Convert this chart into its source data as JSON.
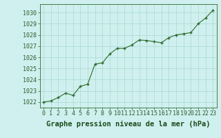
{
  "x": [
    0,
    1,
    2,
    3,
    4,
    5,
    6,
    7,
    8,
    9,
    10,
    11,
    12,
    13,
    14,
    15,
    16,
    17,
    18,
    19,
    20,
    21,
    22,
    23
  ],
  "y": [
    1022.0,
    1022.1,
    1022.4,
    1022.8,
    1022.6,
    1023.4,
    1023.6,
    1025.4,
    1025.5,
    1026.3,
    1026.8,
    1026.8,
    1027.1,
    1027.55,
    1027.5,
    1027.4,
    1027.3,
    1027.75,
    1028.0,
    1028.1,
    1028.2,
    1029.0,
    1029.5,
    1030.2
  ],
  "line_color": "#2d6a2d",
  "marker_color": "#2d6a2d",
  "bg_color": "#cff0ee",
  "grid_color": "#a8d8d4",
  "xlabel": "Graphe pression niveau de la mer (hPa)",
  "ylim": [
    1021.5,
    1030.75
  ],
  "yticks": [
    1022,
    1023,
    1024,
    1025,
    1026,
    1027,
    1028,
    1029,
    1030
  ],
  "xticks": [
    0,
    1,
    2,
    3,
    4,
    5,
    6,
    7,
    8,
    9,
    10,
    11,
    12,
    13,
    14,
    15,
    16,
    17,
    18,
    19,
    20,
    21,
    22,
    23
  ],
  "xlabel_color": "#1a4a1a",
  "tick_color": "#2d5a2d",
  "axis_color": "#2d6a2d",
  "xlabel_fontsize": 7.5,
  "tick_fontsize": 6.0
}
